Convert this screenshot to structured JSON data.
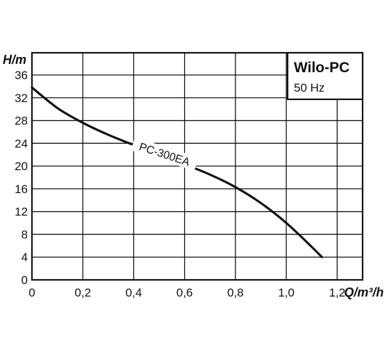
{
  "chart_data": {
    "type": "line",
    "title": "Wilo-PC",
    "subtitle": "50 Hz",
    "xlabel": "Q/m³/h",
    "ylabel": "H/m",
    "xlim": [
      0,
      1.2
    ],
    "ylim": [
      0,
      36
    ],
    "x_ticks": [
      "0",
      "0,2",
      "0,4",
      "0,6",
      "0,8",
      "1,0",
      "1,2"
    ],
    "y_ticks": [
      "0",
      "4",
      "8",
      "12",
      "16",
      "20",
      "24",
      "28",
      "32",
      "36"
    ],
    "grid": true,
    "legend_placement": "top-right",
    "series": [
      {
        "name": "PC-300EA",
        "x": [
          0,
          0.1,
          0.2,
          0.3,
          0.4,
          0.5,
          0.6,
          0.7,
          0.8,
          0.9,
          1.0,
          1.1,
          1.14
        ],
        "y": [
          33.8,
          30.2,
          27.6,
          25.5,
          23.7,
          22.0,
          20.3,
          18.5,
          16.3,
          13.5,
          10.0,
          5.8,
          4.0
        ]
      }
    ]
  }
}
